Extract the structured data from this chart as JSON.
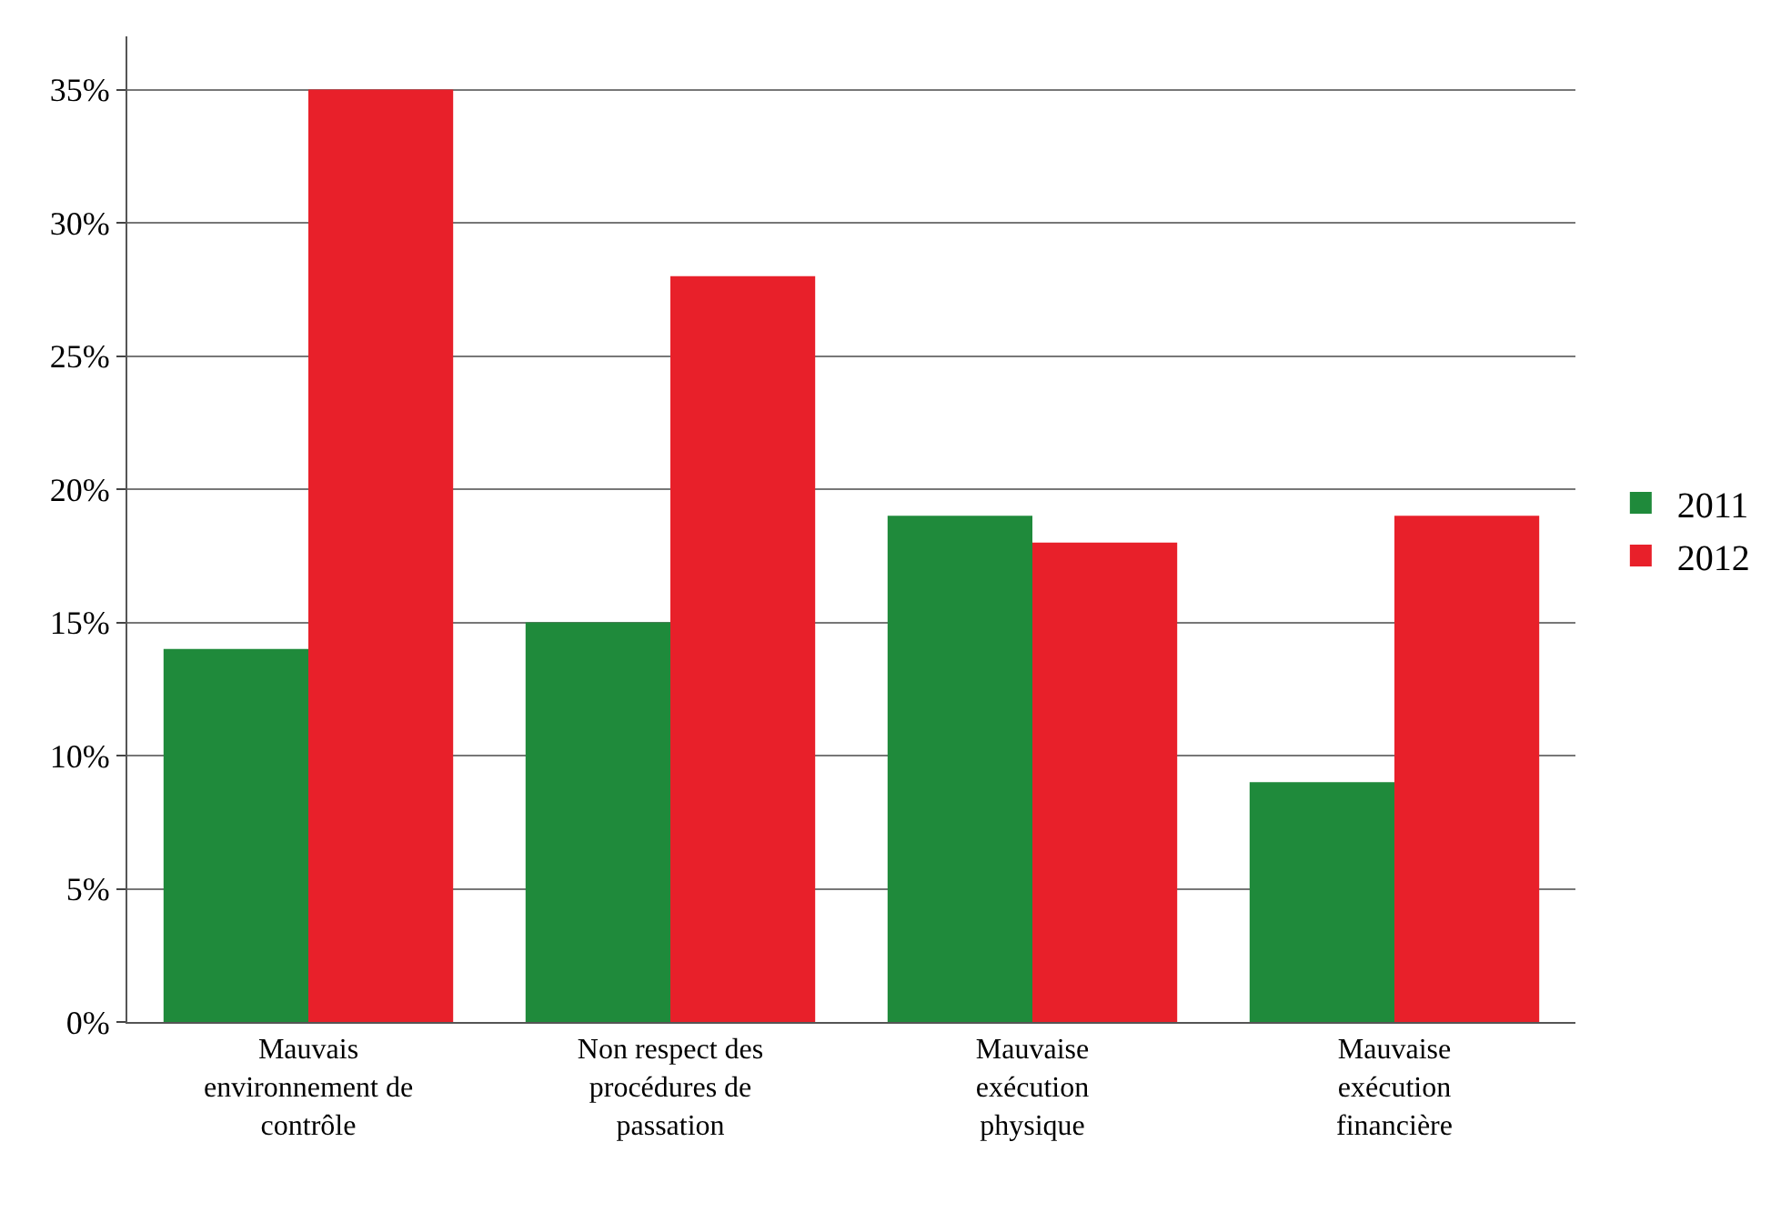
{
  "chart_data": {
    "type": "bar",
    "categories": [
      "Mauvais environnement de contrôle",
      "Non respect des procédures de passation",
      "Mauvaise exécution physique",
      "Mauvaise exécution financière"
    ],
    "series": [
      {
        "name": "2011",
        "color": "#1f8a3b",
        "values": [
          14,
          15,
          19,
          9
        ]
      },
      {
        "name": "2012",
        "color": "#e8202a",
        "values": [
          35,
          28,
          18,
          19
        ]
      }
    ],
    "ylim": [
      0,
      37
    ],
    "yticks": [
      {
        "value": 0,
        "label": "0%"
      },
      {
        "value": 5,
        "label": "5%"
      },
      {
        "value": 10,
        "label": "10%"
      },
      {
        "value": 15,
        "label": "15%"
      },
      {
        "value": 20,
        "label": "20%"
      },
      {
        "value": 25,
        "label": "25%"
      },
      {
        "value": 30,
        "label": "30%"
      },
      {
        "value": 35,
        "label": "35%"
      }
    ],
    "grid": "y",
    "legend": "right"
  }
}
